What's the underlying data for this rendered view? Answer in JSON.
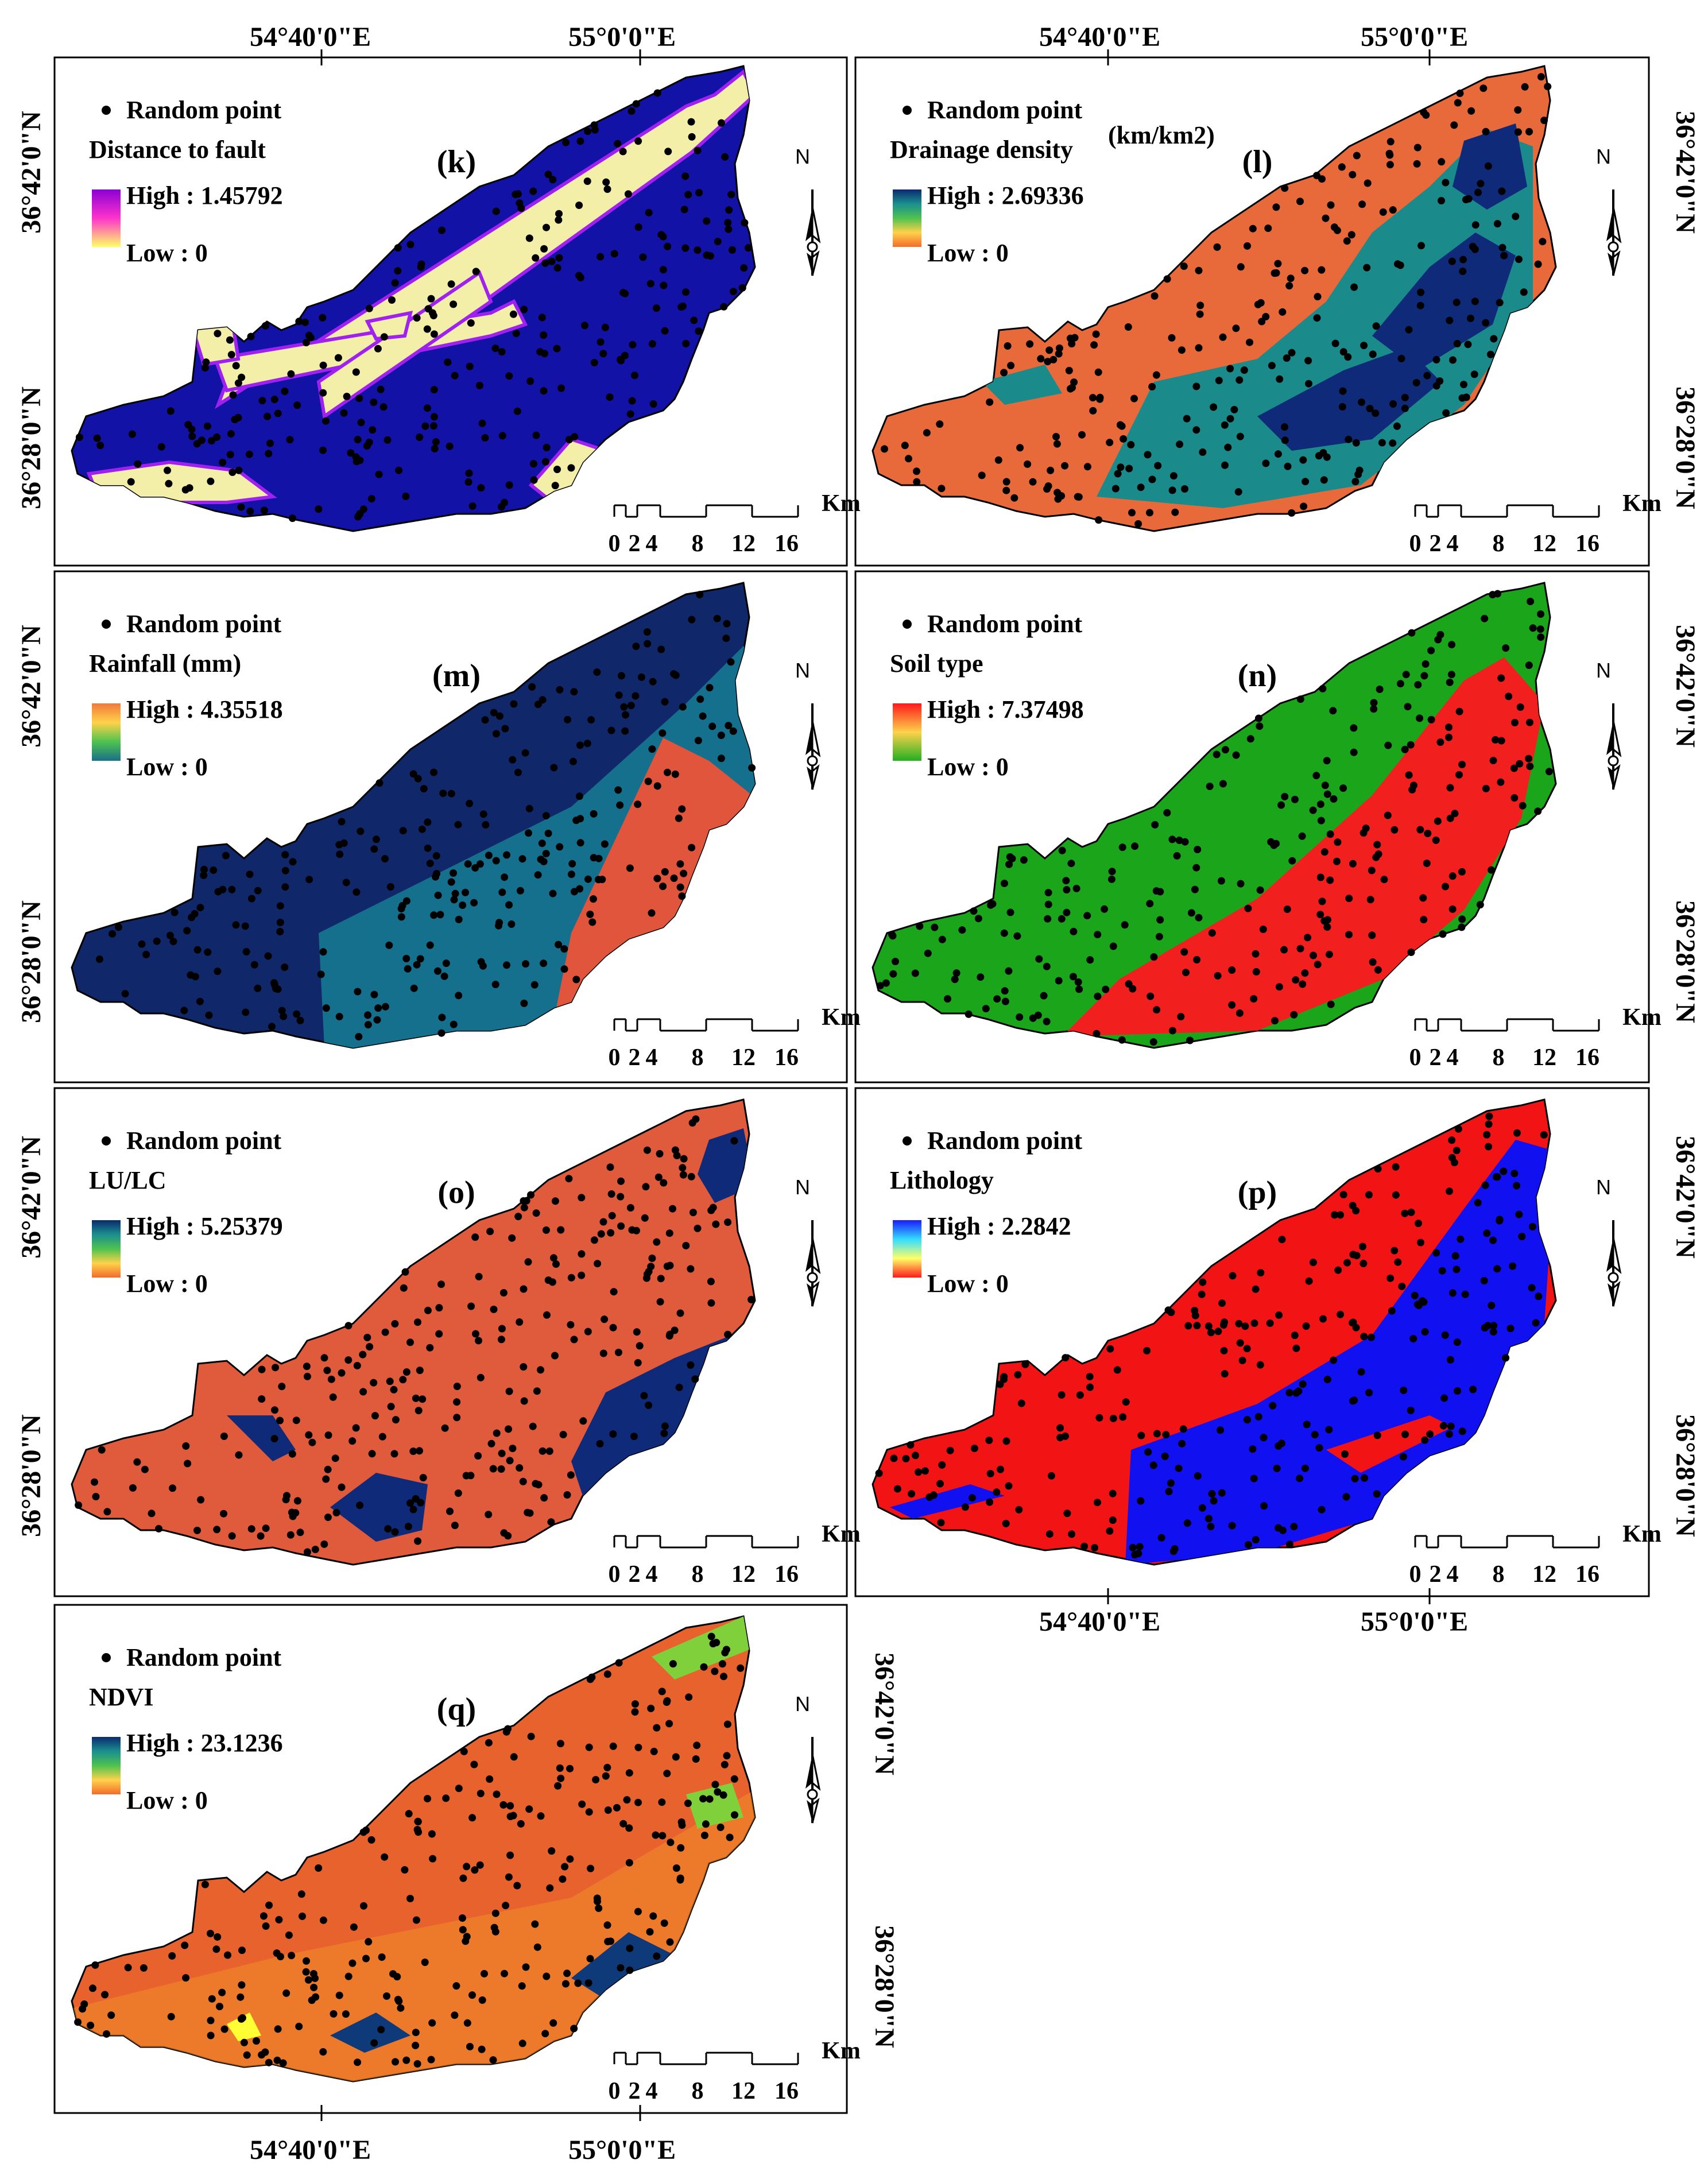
{
  "figure": {
    "top_axis_labels": [
      "54°40'0\"E",
      "55°0'0\"E"
    ],
    "bottom_axis_labels": [
      "54°40'0\"E",
      "55°0'0\"E"
    ],
    "lat_labels": [
      "36°42'0\"N",
      "36°28'0\"N"
    ],
    "north_letter": "N",
    "scale": {
      "unit": "Km",
      "ticks": [
        "0",
        "2",
        "4",
        "8",
        "12",
        "16"
      ]
    },
    "point_label": "Random point"
  },
  "panels": [
    {
      "id": "k",
      "label": "(k)",
      "title": "Distance to fault",
      "high": "High : 1.45792",
      "low": "Low : 0",
      "ramp": [
        "#8a00d4",
        "#ff33cc",
        "#ffff66"
      ]
    },
    {
      "id": "l",
      "label": "(l)",
      "title": "Drainage density",
      "title_unit": "(km/km2)",
      "high": "High : 2.69336",
      "low": "Low : 0",
      "ramp": [
        "#0b2a6e",
        "#1a8f8f",
        "#4fc24f",
        "#ffd24a",
        "#f26b2c"
      ]
    },
    {
      "id": "m",
      "label": "(m)",
      "title": "Rainfall (mm)",
      "high": "High : 4.35518",
      "low": "Low : 0",
      "ramp": [
        "#f07a3a",
        "#ffd24a",
        "#4fc24f",
        "#1a6f8a"
      ]
    },
    {
      "id": "n",
      "label": "(n)",
      "title": "Soil type",
      "high": "High : 7.37498",
      "low": "Low : 0",
      "ramp": [
        "#ff1a1a",
        "#ffd24a",
        "#22b022"
      ]
    },
    {
      "id": "o",
      "label": "(o)",
      "title": "LU/LC",
      "high": "High : 5.25379",
      "low": "Low : 0",
      "ramp": [
        "#0b2a6e",
        "#1a8f8f",
        "#4fc24f",
        "#ffd24a",
        "#f26b2c"
      ]
    },
    {
      "id": "p",
      "label": "(p)",
      "title": "Lithology",
      "high": "High : 2.2842",
      "low": "Low : 0",
      "ramp": [
        "#1a1aff",
        "#33ddff",
        "#ffff66",
        "#ff1a1a"
      ]
    },
    {
      "id": "q",
      "label": "(q)",
      "title": "NDVI",
      "high": "High : 23.1236",
      "low": "Low : 0",
      "ramp": [
        "#0b2a6e",
        "#1a8f8f",
        "#4fc24f",
        "#ffd24a",
        "#f26b2c"
      ]
    }
  ],
  "colors": {
    "k_bg": "#1212a6",
    "k_band": "#f3eea8",
    "k_edge": "#a020f0",
    "l_bg": "#e86a3a",
    "l_mid": "#1a8a8a",
    "l_dark": "#0e2a78",
    "m_dark": "#10286a",
    "m_mid": "#14708c",
    "m_red": "#e0553c",
    "n_green": "#1aa51a",
    "n_red": "#f21f1f",
    "o_bg": "#e05a3c",
    "o_water": "#0e2a78",
    "p_red": "#f21414",
    "p_blue": "#1010f0",
    "q_bg": "#e8622e",
    "q_alt": "#f08a2a",
    "q_green": "#7fd03a",
    "q_blue": "#0e3a7a",
    "point": "#000000"
  }
}
